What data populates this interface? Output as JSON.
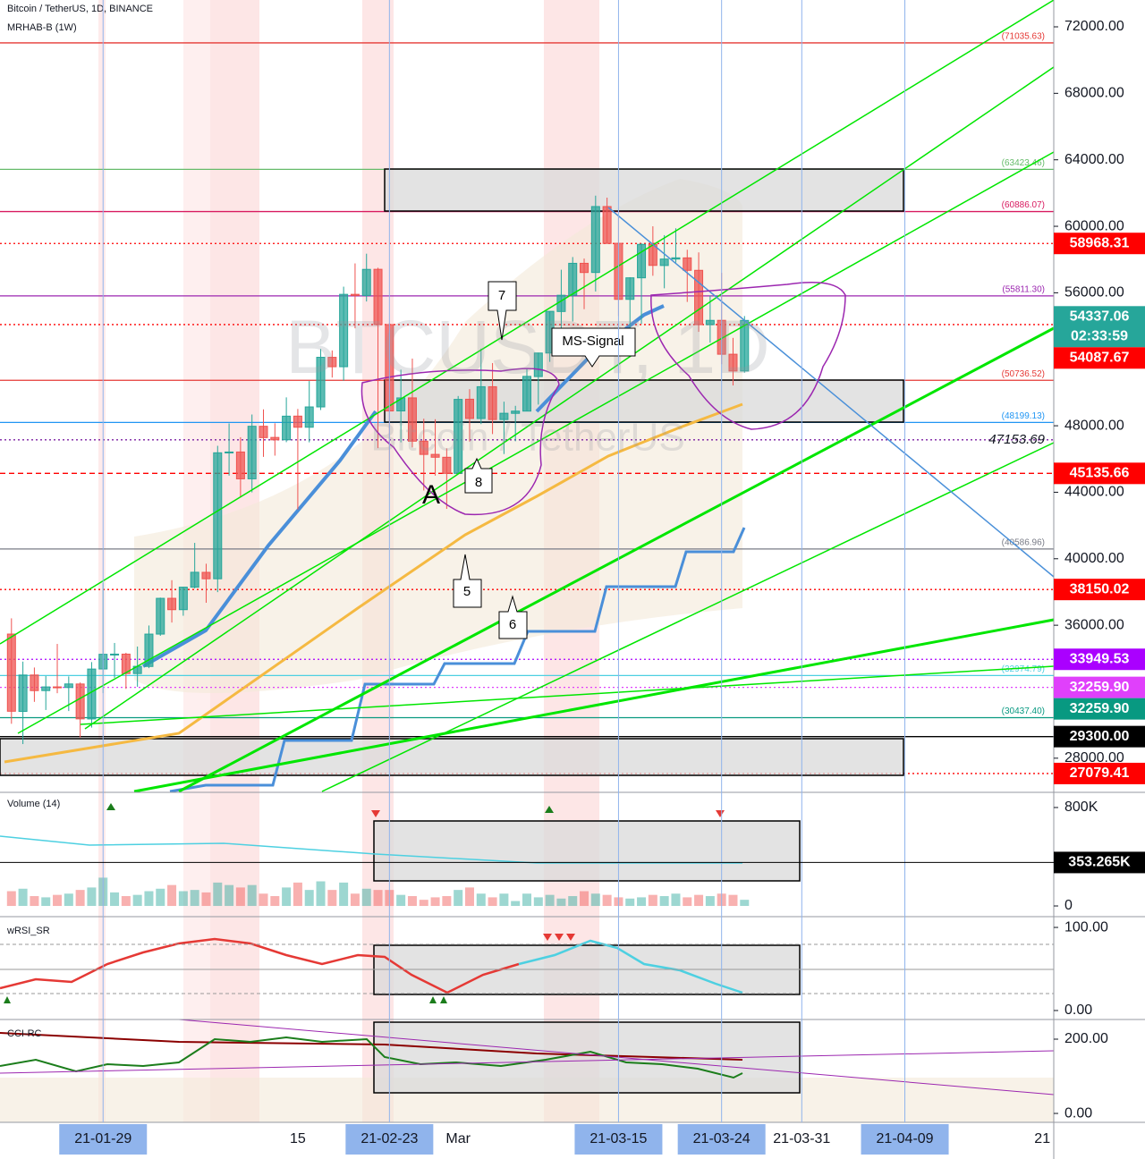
{
  "header": {
    "title": "Bitcoin / TetherUS, 1D, BINANCE",
    "indicator": "MRHAB-B (1W)"
  },
  "watermark": {
    "symbol": "BTCUSDT, 1D",
    "name": "Bitcoin / TetherUS"
  },
  "chart_data": {
    "type": "candlestick",
    "x": [
      "21-01-21",
      "21-01-22",
      "21-01-23",
      "21-01-24",
      "21-01-25",
      "21-01-26",
      "21-01-27",
      "21-01-28",
      "21-01-29",
      "21-01-30",
      "21-01-31",
      "21-02-01",
      "21-02-02",
      "21-02-03",
      "21-02-04",
      "21-02-05",
      "21-02-06",
      "21-02-07",
      "21-02-08",
      "21-02-09",
      "21-02-10",
      "21-02-11",
      "21-02-12",
      "21-02-13",
      "21-02-14",
      "21-02-15",
      "21-02-16",
      "21-02-17",
      "21-02-18",
      "21-02-19",
      "21-02-20",
      "21-02-21",
      "21-02-22",
      "21-02-23",
      "21-02-24",
      "21-02-25",
      "21-02-26",
      "21-02-27",
      "21-02-28",
      "21-03-01",
      "21-03-02",
      "21-03-03",
      "21-03-04",
      "21-03-05",
      "21-03-06",
      "21-03-07",
      "21-03-08",
      "21-03-09",
      "21-03-10",
      "21-03-11",
      "21-03-12",
      "21-03-13",
      "21-03-14",
      "21-03-15",
      "21-03-16",
      "21-03-17",
      "21-03-18",
      "21-03-19",
      "21-03-20",
      "21-03-21",
      "21-03-22",
      "21-03-23",
      "21-03-24",
      "21-03-25",
      "21-03-26"
    ],
    "open": [
      35468,
      30817,
      33005,
      32068,
      32290,
      32254,
      32464,
      30362,
      33368,
      34246,
      34262,
      33092,
      33518,
      35467,
      37619,
      36936,
      38289,
      39181,
      38795,
      46374,
      46421,
      44807,
      47969,
      47298,
      47156,
      48580,
      47911,
      49134,
      52117,
      51552,
      55906,
      55841,
      57413,
      54087,
      48892,
      49677,
      47073,
      46277,
      46104,
      45134,
      49596,
      48436,
      50349,
      48374,
      48746,
      48882,
      50959,
      52376,
      54874,
      55851,
      57773,
      57222,
      61188,
      58976,
      55605,
      56900,
      58912,
      57641,
      58030,
      58100,
      57351,
      54083,
      54342,
      52303,
      51293
    ],
    "high": [
      36415,
      33811,
      33456,
      32944,
      34875,
      32921,
      32557,
      33783,
      38531,
      34933,
      34342,
      34717,
      35984,
      37662,
      38708,
      38310,
      40955,
      39700,
      46794,
      48142,
      47310,
      48678,
      48985,
      48150,
      49707,
      49010,
      50690,
      52618,
      52530,
      56368,
      57767,
      58352,
      57508,
      54183,
      51374,
      52041,
      48424,
      48394,
      46638,
      49790,
      50200,
      52640,
      51773,
      49448,
      49200,
      51450,
      52402,
      54900,
      57387,
      58150,
      58058,
      61844,
      61724,
      60633,
      56938,
      58974,
      60000,
      59468,
      59880,
      58589,
      58430,
      55830,
      57200,
      53287,
      54600
    ],
    "low": [
      30071,
      28850,
      31390,
      30900,
      31910,
      30837,
      29241,
      29842,
      31915,
      32825,
      32171,
      32297,
      33418,
      35362,
      36161,
      36570,
      38215,
      37351,
      37988,
      45000,
      43727,
      43994,
      46125,
      46202,
      47014,
      42960,
      47003,
      48947,
      50901,
      50710,
      53863,
      55477,
      46650,
      44892,
      47003,
      46700,
      44106,
      45000,
      43000,
      45115,
      47047,
      48100,
      47500,
      46300,
      47070,
      48882,
      49274,
      51845,
      53005,
      54272,
      55013,
      56078,
      58966,
      54600,
      53271,
      54123,
      57023,
      56270,
      57820,
      55450,
      53650,
      53000,
      51700,
      50427,
      51193
    ],
    "close": [
      30825,
      33005,
      32067,
      32289,
      32254,
      32467,
      30366,
      33364,
      34252,
      34262,
      33092,
      33526,
      35466,
      37618,
      36936,
      38290,
      39186,
      38795,
      46374,
      46420,
      44807,
      47969,
      47287,
      47153,
      48577,
      47911,
      49133,
      52119,
      51552,
      55906,
      55841,
      57408,
      54087,
      48891,
      49676,
      47073,
      46276,
      46106,
      45135,
      49587,
      48440,
      50349,
      48374,
      48751,
      48882,
      50971,
      52375,
      54884,
      55851,
      57773,
      57221,
      61188,
      58968,
      55605,
      56900,
      58912,
      57648,
      58030,
      58102,
      57351,
      54083,
      54340,
      52303,
      51293,
      54337.06
    ],
    "colors": {
      "up": "#26a69a",
      "down": "#ef5350"
    },
    "xlim": [
      "21-01-20",
      "21-04-22"
    ],
    "ylim": [
      26000,
      73614
    ],
    "yticks": [
      {
        "value": 72000,
        "label": "72000.00"
      },
      {
        "value": 68000,
        "label": "68000.00"
      },
      {
        "value": 64000,
        "label": "64000.00"
      },
      {
        "value": 60000,
        "label": "60000.00"
      },
      {
        "value": 56000,
        "label": "56000.00"
      },
      {
        "value": 52000,
        "label": "52000.00"
      },
      {
        "value": 48000,
        "label": "48000.00"
      },
      {
        "value": 44000,
        "label": "44000.00"
      },
      {
        "value": 40000,
        "label": "40000.00"
      },
      {
        "value": 36000,
        "label": "36000.00"
      },
      {
        "value": 32000,
        "label": "32000.00"
      },
      {
        "value": 28000,
        "label": "28000.00"
      }
    ],
    "xticks": [
      {
        "value": "21-01-29",
        "label": "21-01-29",
        "highlight": true,
        "grid": true
      },
      {
        "value": "21-02-15",
        "label": "15",
        "highlight": false,
        "grid": false
      },
      {
        "value": "21-02-23",
        "label": "21-02-23",
        "highlight": true,
        "grid": true
      },
      {
        "value": "21-03-01",
        "label": "Mar",
        "highlight": false,
        "grid": false
      },
      {
        "value": "21-03-15",
        "label": "21-03-15",
        "highlight": true,
        "grid": true
      },
      {
        "value": "21-03-24",
        "label": "21-03-24",
        "highlight": true,
        "grid": true
      },
      {
        "value": "21-03-31",
        "label": "21-03-31",
        "highlight": false,
        "grid": true
      },
      {
        "value": "21-04-09",
        "label": "21-04-09",
        "highlight": true,
        "grid": true
      },
      {
        "value": "21-04-21",
        "label": "21",
        "highlight": false,
        "grid": false
      }
    ],
    "levels": [
      {
        "value": 71035.63,
        "label": "(71035.63)",
        "color": "#e53935",
        "line": "solid",
        "kind": "tag"
      },
      {
        "value": 63423.46,
        "label": "(63423.46)",
        "color": "#66bb6a",
        "line": "solid",
        "kind": "tag"
      },
      {
        "value": 60886.07,
        "label": "(60886.07)",
        "color": "#d81b60",
        "line": "solid",
        "kind": "tag"
      },
      {
        "value": 58968.31,
        "label": "58968.31",
        "color": "#ff0000",
        "line": "dotted",
        "kind": "box"
      },
      {
        "value": 55811.3,
        "label": "(55811.30)",
        "color": "#9c27b0",
        "line": "solid",
        "kind": "tag"
      },
      {
        "value": 54337.06,
        "label": "54337.06",
        "color": "#26a69a",
        "line": "none",
        "kind": "current"
      },
      {
        "value": 54087.67,
        "label": "54087.67",
        "color": "#ff0000",
        "line": "dotted",
        "kind": "box"
      },
      {
        "value": 50736.52,
        "label": "(50736.52)",
        "color": "#e53935",
        "line": "solid",
        "kind": "tag"
      },
      {
        "value": 48199.13,
        "label": "(48199.13)",
        "color": "#2196f3",
        "line": "solid",
        "kind": "tag"
      },
      {
        "value": 47153.69,
        "label": "47153.69",
        "color": "#7b1fa2",
        "line": "dotted",
        "kind": "text"
      },
      {
        "value": 45135.66,
        "label": "45135.66",
        "color": "#ff0000",
        "line": "dashed",
        "kind": "box"
      },
      {
        "value": 40586.96,
        "label": "(40586.96)",
        "color": "#787b86",
        "line": "solid",
        "kind": "tag"
      },
      {
        "value": 38150.02,
        "label": "38150.02",
        "color": "#ff0000",
        "line": "dotted",
        "kind": "box"
      },
      {
        "value": 33949.53,
        "label": "33949.53",
        "color": "#aa00ff",
        "line": "dotted",
        "kind": "box"
      },
      {
        "value": 32974.79,
        "label": "(32974.79)",
        "color": "#4dd0e1",
        "line": "solid",
        "kind": "tag"
      },
      {
        "value": 32259.9,
        "label": "32259.90",
        "color": "#e040fb",
        "line": "dotted",
        "kind": "box"
      },
      {
        "value": 32259.9,
        "label": "32259.90",
        "color": "#089981",
        "line": "none",
        "kind": "box"
      },
      {
        "value": 30437.4,
        "label": "(30437.40)",
        "color": "#089981",
        "line": "solid",
        "kind": "tag"
      },
      {
        "value": 29300.0,
        "label": "29300.00",
        "color": "#000000",
        "line": "solid",
        "kind": "box"
      },
      {
        "value": 27079.41,
        "label": "27079.41",
        "color": "#ff0000",
        "line": "dotted",
        "kind": "box"
      }
    ],
    "timer": "02:33:59",
    "annotations": [
      "7",
      "MS-Signal",
      "8",
      "5",
      "6",
      "A"
    ]
  },
  "volume": {
    "title": "Volume (14)",
    "values": [
      120,
      140,
      80,
      70,
      90,
      100,
      130,
      150,
      230,
      110,
      80,
      90,
      120,
      140,
      170,
      120,
      130,
      110,
      190,
      170,
      150,
      170,
      100,
      80,
      150,
      190,
      130,
      200,
      130,
      190,
      100,
      140,
      130,
      130,
      90,
      80,
      50,
      70,
      80,
      130,
      150,
      100,
      70,
      100,
      40,
      100,
      70,
      90,
      60,
      80,
      120,
      100,
      90,
      70,
      60,
      70,
      90,
      80,
      100,
      70,
      90,
      80,
      100,
      90,
      50
    ],
    "ylim": [
      -87,
      916
    ],
    "yticks": [
      {
        "value": 800,
        "label": "800K"
      },
      0
    ],
    "last": {
      "value": 353.265,
      "label": "353.265K"
    }
  },
  "rsi": {
    "title": "wRSI_SR",
    "ylim": [
      -10.8,
      110.8
    ],
    "yticks": [
      {
        "value": 100,
        "label": "100.00"
      },
      {
        "value": 0,
        "label": "0.00"
      }
    ]
  },
  "cci": {
    "title": "CCI-RC",
    "ylim": [
      -24,
      253
    ],
    "yticks": [
      {
        "value": 200,
        "label": "200.00"
      },
      {
        "value": 0,
        "label": "0.00"
      }
    ]
  }
}
